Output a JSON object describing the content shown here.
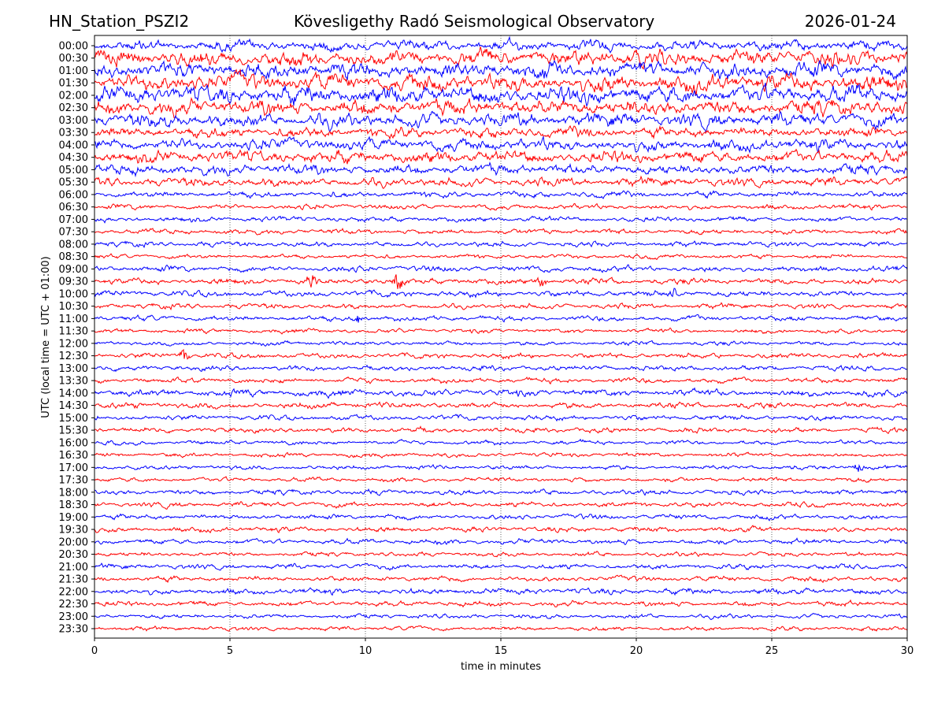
{
  "header": {
    "station": "HN_Station_PSZI2",
    "observatory": "Kövesligethy Radó Seismological Observatory",
    "date": "2026-01-24"
  },
  "chart_data": {
    "type": "line",
    "subtype": "helicorder",
    "xlabel": "time in minutes",
    "ylabel": "UTC (local time = UTC + 01:00)",
    "xlim": [
      0,
      30
    ],
    "xticks": [
      "0",
      "5",
      "10",
      "15",
      "20",
      "25",
      "30"
    ],
    "grid": "vertical dotted at 5-minute intervals",
    "colors": [
      "#0000ff",
      "#ff0000"
    ],
    "rows": [
      {
        "label": "00:00",
        "amp": 0.6
      },
      {
        "label": "00:30",
        "amp": 0.9
      },
      {
        "label": "01:00",
        "amp": 0.9
      },
      {
        "label": "01:30",
        "amp": 1.0
      },
      {
        "label": "02:00",
        "amp": 1.0
      },
      {
        "label": "02:30",
        "amp": 0.9
      },
      {
        "label": "03:00",
        "amp": 0.8
      },
      {
        "label": "03:30",
        "amp": 0.6
      },
      {
        "label": "04:00",
        "amp": 0.7
      },
      {
        "label": "04:30",
        "amp": 0.7
      },
      {
        "label": "05:00",
        "amp": 0.6
      },
      {
        "label": "05:30",
        "amp": 0.5
      },
      {
        "label": "06:00",
        "amp": 0.35
      },
      {
        "label": "06:30",
        "amp": 0.3
      },
      {
        "label": "07:00",
        "amp": 0.3
      },
      {
        "label": "07:30",
        "amp": 0.3
      },
      {
        "label": "08:00",
        "amp": 0.3
      },
      {
        "label": "08:30",
        "amp": 0.25
      },
      {
        "label": "09:00",
        "amp": 0.35
      },
      {
        "label": "09:30",
        "amp": 0.35
      },
      {
        "label": "10:00",
        "amp": 0.35
      },
      {
        "label": "10:30",
        "amp": 0.3
      },
      {
        "label": "11:00",
        "amp": 0.3
      },
      {
        "label": "11:30",
        "amp": 0.25
      },
      {
        "label": "12:00",
        "amp": 0.25
      },
      {
        "label": "12:30",
        "amp": 0.3
      },
      {
        "label": "13:00",
        "amp": 0.3
      },
      {
        "label": "13:30",
        "amp": 0.3
      },
      {
        "label": "14:00",
        "amp": 0.4
      },
      {
        "label": "14:30",
        "amp": 0.35
      },
      {
        "label": "15:00",
        "amp": 0.3
      },
      {
        "label": "15:30",
        "amp": 0.3
      },
      {
        "label": "16:00",
        "amp": 0.25
      },
      {
        "label": "16:30",
        "amp": 0.25
      },
      {
        "label": "17:00",
        "amp": 0.25
      },
      {
        "label": "17:30",
        "amp": 0.25
      },
      {
        "label": "18:00",
        "amp": 0.3
      },
      {
        "label": "18:30",
        "amp": 0.3
      },
      {
        "label": "19:00",
        "amp": 0.3
      },
      {
        "label": "19:30",
        "amp": 0.3
      },
      {
        "label": "20:00",
        "amp": 0.3
      },
      {
        "label": "20:30",
        "amp": 0.25
      },
      {
        "label": "21:00",
        "amp": 0.3
      },
      {
        "label": "21:30",
        "amp": 0.3
      },
      {
        "label": "22:00",
        "amp": 0.35
      },
      {
        "label": "22:30",
        "amp": 0.3
      },
      {
        "label": "23:00",
        "amp": 0.25
      },
      {
        "label": "23:30",
        "amp": 0.25
      }
    ],
    "events": [
      {
        "row": "09:30",
        "minute": 11.2,
        "amp": 1.4
      },
      {
        "row": "09:30",
        "minute": 8.0,
        "amp": 0.9
      },
      {
        "row": "09:30",
        "minute": 16.5,
        "amp": 0.9
      },
      {
        "row": "10:00",
        "minute": 21.3,
        "amp": 0.7
      },
      {
        "row": "12:30",
        "minute": 3.3,
        "amp": 0.9
      },
      {
        "row": "17:00",
        "minute": 28.2,
        "amp": 0.5
      },
      {
        "row": "11:00",
        "minute": 9.7,
        "amp": 0.6
      }
    ]
  }
}
